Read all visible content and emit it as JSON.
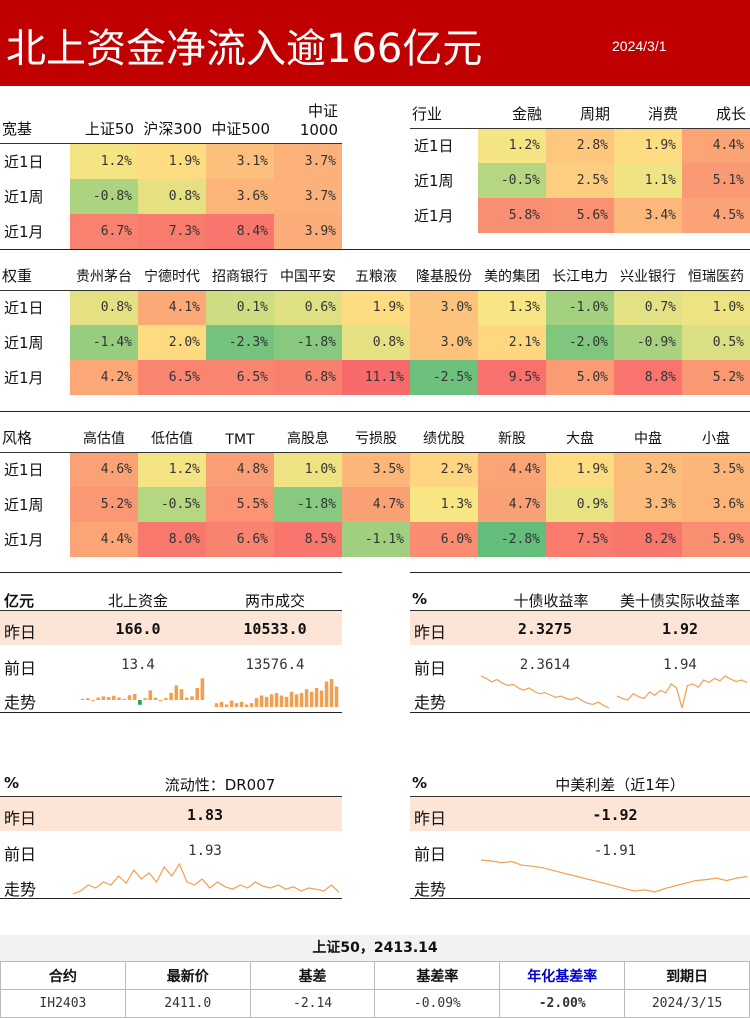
{
  "header": {
    "title": "北上资金净流入逾166亿元",
    "date": "2024/3/1"
  },
  "colors": {
    "header_bg": "#c00000",
    "highlight_row": "#fce4d6",
    "bar": "#f0a050",
    "bar_neg": "#2ea043",
    "line": "#f0a050"
  },
  "broad": {
    "corner": "宽基",
    "columns": [
      "上证50",
      "沪深300",
      "中证500",
      "中证1000"
    ],
    "rows": [
      {
        "label": "近1日",
        "values": [
          "1.2%",
          "1.9%",
          "3.1%",
          "3.7%"
        ]
      },
      {
        "label": "近1周",
        "values": [
          "-0.8%",
          "0.8%",
          "3.6%",
          "3.7%"
        ]
      },
      {
        "label": "近1月",
        "values": [
          "6.7%",
          "7.3%",
          "8.4%",
          "3.9%"
        ]
      }
    ]
  },
  "industry": {
    "corner": "行业",
    "columns": [
      "金融",
      "周期",
      "消费",
      "成长"
    ],
    "rows": [
      {
        "label": "近1日",
        "values": [
          "1.2%",
          "2.8%",
          "1.9%",
          "4.4%"
        ]
      },
      {
        "label": "近1周",
        "values": [
          "-0.5%",
          "2.5%",
          "1.1%",
          "5.1%"
        ]
      },
      {
        "label": "近1月",
        "values": [
          "5.8%",
          "5.6%",
          "3.4%",
          "4.5%"
        ]
      }
    ]
  },
  "weights": {
    "corner": "权重",
    "columns": [
      "贵州茅台",
      "宁德时代",
      "招商银行",
      "中国平安",
      "五粮液",
      "隆基股份",
      "美的集团",
      "长江电力",
      "兴业银行",
      "恒瑞医药"
    ],
    "rows": [
      {
        "label": "近1日",
        "values": [
          "0.8%",
          "4.1%",
          "0.1%",
          "0.6%",
          "1.9%",
          "3.0%",
          "1.3%",
          "-1.0%",
          "0.7%",
          "1.0%"
        ]
      },
      {
        "label": "近1周",
        "values": [
          "-1.4%",
          "2.0%",
          "-2.3%",
          "-1.8%",
          "0.8%",
          "3.0%",
          "2.1%",
          "-2.0%",
          "-0.9%",
          "0.5%"
        ]
      },
      {
        "label": "近1月",
        "values": [
          "4.2%",
          "6.5%",
          "6.5%",
          "6.8%",
          "11.1%",
          "-2.5%",
          "9.5%",
          "5.0%",
          "8.8%",
          "5.2%"
        ]
      }
    ]
  },
  "style": {
    "corner": "风格",
    "columns": [
      "高估值",
      "低估值",
      "TMT",
      "高股息",
      "亏损股",
      "绩优股",
      "新股",
      "大盘",
      "中盘",
      "小盘"
    ],
    "rows": [
      {
        "label": "近1日",
        "values": [
          "4.6%",
          "1.2%",
          "4.8%",
          "1.0%",
          "3.5%",
          "2.2%",
          "4.4%",
          "1.9%",
          "3.2%",
          "3.5%"
        ]
      },
      {
        "label": "近1周",
        "values": [
          "5.2%",
          "-0.5%",
          "5.5%",
          "-1.8%",
          "4.7%",
          "1.3%",
          "4.7%",
          "0.9%",
          "3.3%",
          "3.6%"
        ]
      },
      {
        "label": "近1月",
        "values": [
          "4.4%",
          "8.0%",
          "6.6%",
          "8.5%",
          "-1.1%",
          "6.0%",
          "-2.8%",
          "7.5%",
          "8.2%",
          "5.9%"
        ]
      }
    ]
  },
  "flow": {
    "corner": "亿元",
    "col1": "北上资金",
    "col2": "两市成交",
    "yesterday_label": "昨日",
    "yesterday": [
      "166.0",
      "10533.0"
    ],
    "prev_label": "前日",
    "prev": [
      "13.4",
      "13576.4"
    ],
    "trend_label": "走势",
    "north_bars": [
      1,
      1.5,
      -0.5,
      2,
      3,
      2.5,
      3.5,
      2,
      1,
      4,
      5,
      -4,
      1.5,
      8,
      2,
      -1,
      1.5,
      6,
      12,
      9,
      2,
      3,
      10,
      18
    ],
    "turnover_bars": [
      3,
      4,
      2,
      5,
      3,
      4,
      2,
      3,
      7,
      9,
      8,
      10,
      11,
      9,
      8,
      12,
      10,
      11,
      14,
      12,
      15,
      13,
      20,
      22,
      16
    ]
  },
  "bond": {
    "corner": "%",
    "col1": "十债收益率",
    "col2": "美十债实际收益率",
    "yesterday_label": "昨日",
    "yesterday": [
      "2.3275",
      "1.92"
    ],
    "prev_label": "前日",
    "prev": [
      "2.3614",
      "1.94"
    ],
    "trend_label": "走势",
    "cn10y": [
      2.6,
      2.58,
      2.55,
      2.57,
      2.54,
      2.52,
      2.53,
      2.5,
      2.48,
      2.5,
      2.47,
      2.45,
      2.46,
      2.44,
      2.42,
      2.43,
      2.41,
      2.4,
      2.42,
      2.39,
      2.37,
      2.36,
      2.38,
      2.35,
      2.33
    ],
    "us10yreal": [
      1.75,
      1.72,
      1.7,
      1.78,
      1.74,
      1.72,
      1.8,
      1.76,
      1.82,
      1.79,
      1.9,
      1.85,
      1.6,
      1.88,
      1.9,
      1.86,
      1.95,
      1.92,
      1.97,
      1.94,
      2.0,
      1.96,
      1.93,
      1.95,
      1.92
    ]
  },
  "liquidity": {
    "corner": "%",
    "title": "流动性：DR007",
    "yesterday_label": "昨日",
    "yesterday": "1.83",
    "prev_label": "前日",
    "prev": "1.93",
    "trend_label": "走势",
    "series": [
      1.8,
      1.85,
      1.95,
      1.9,
      2.0,
      1.95,
      2.1,
      1.98,
      2.2,
      2.05,
      2.15,
      2.0,
      2.25,
      2.1,
      2.3,
      2.0,
      1.95,
      2.05,
      1.9,
      2.0,
      1.92,
      1.88,
      1.95,
      1.9,
      2.0,
      1.93,
      1.9,
      1.95,
      1.88,
      1.92,
      1.85,
      1.9,
      1.88,
      1.85,
      1.95,
      1.83
    ]
  },
  "spread": {
    "corner": "%",
    "title": "中美利差（近1年）",
    "yesterday_label": "昨日",
    "yesterday": "-1.92",
    "prev_label": "前日",
    "prev": "-1.91",
    "trend_label": "走势",
    "series": [
      -1.6,
      -1.62,
      -1.65,
      -1.63,
      -1.7,
      -1.72,
      -1.75,
      -1.8,
      -1.85,
      -1.9,
      -1.95,
      -2.0,
      -2.05,
      -2.1,
      -2.15,
      -2.2,
      -2.18,
      -2.22,
      -2.15,
      -2.1,
      -2.05,
      -2.0,
      -1.98,
      -1.95,
      -2.0,
      -1.95,
      -1.92
    ]
  },
  "futures": {
    "title": "上证50，2413.14",
    "columns": [
      "合约",
      "最新价",
      "基差",
      "基差率",
      "年化基差率",
      "到期日"
    ],
    "rows": [
      [
        "IH2403",
        "2411.0",
        "-2.14",
        "-0.09%",
        "-2.00%",
        "2024/3/15"
      ]
    ]
  }
}
